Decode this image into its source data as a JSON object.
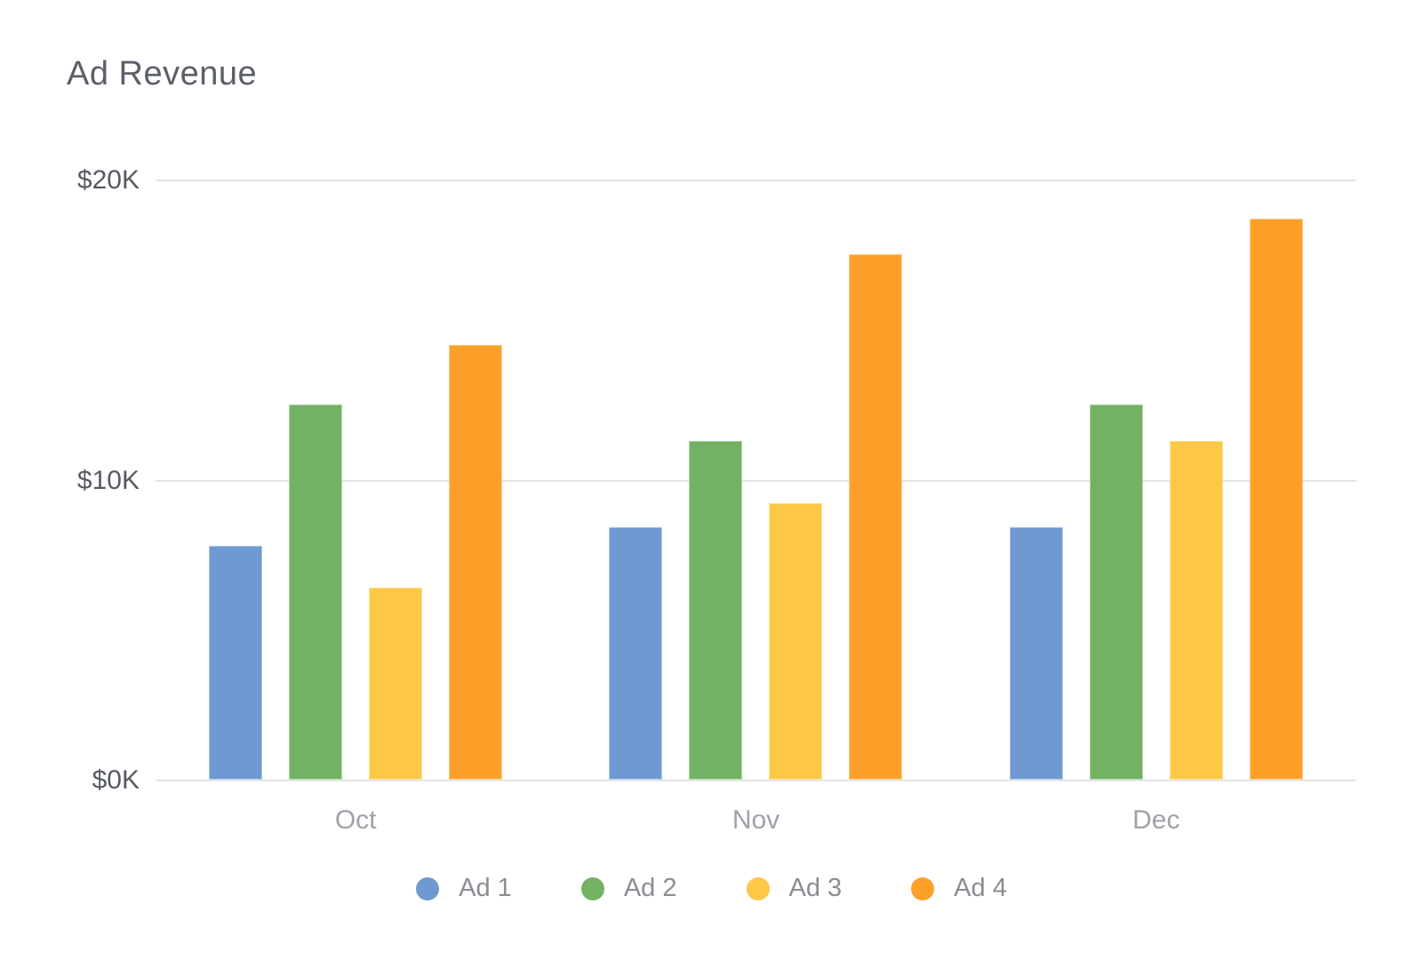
{
  "title": "Ad Revenue",
  "chart_data": {
    "type": "bar",
    "title": "Ad Revenue",
    "categories": [
      "Oct",
      "Nov",
      "Dec"
    ],
    "series": [
      {
        "name": "Ad 1",
        "color": "#6f99d1",
        "values": [
          7800,
          8400,
          8400
        ]
      },
      {
        "name": "Ad 2",
        "color": "#73b163",
        "values": [
          12500,
          11300,
          12500
        ]
      },
      {
        "name": "Ad 3",
        "color": "#fdc845",
        "values": [
          6400,
          9200,
          11300
        ]
      },
      {
        "name": "Ad 4",
        "color": "#fda029",
        "values": [
          14500,
          17500,
          18700
        ]
      }
    ],
    "xlabel": "",
    "ylabel": "",
    "ylim": [
      0,
      20000
    ],
    "y_ticks": [
      {
        "label": "$0K",
        "value": 0
      },
      {
        "label": "$10K",
        "value": 10000
      },
      {
        "label": "$20K",
        "value": 20000
      }
    ],
    "grid": true,
    "legend_position": "bottom"
  },
  "colors": {
    "title_text": "#5b5f6a",
    "y_tick_text": "#565a63",
    "x_label_text": "#9fa2a9",
    "legend_text": "#8a8d93",
    "gridline": "#e5e5e7",
    "background": "#ffffff"
  }
}
